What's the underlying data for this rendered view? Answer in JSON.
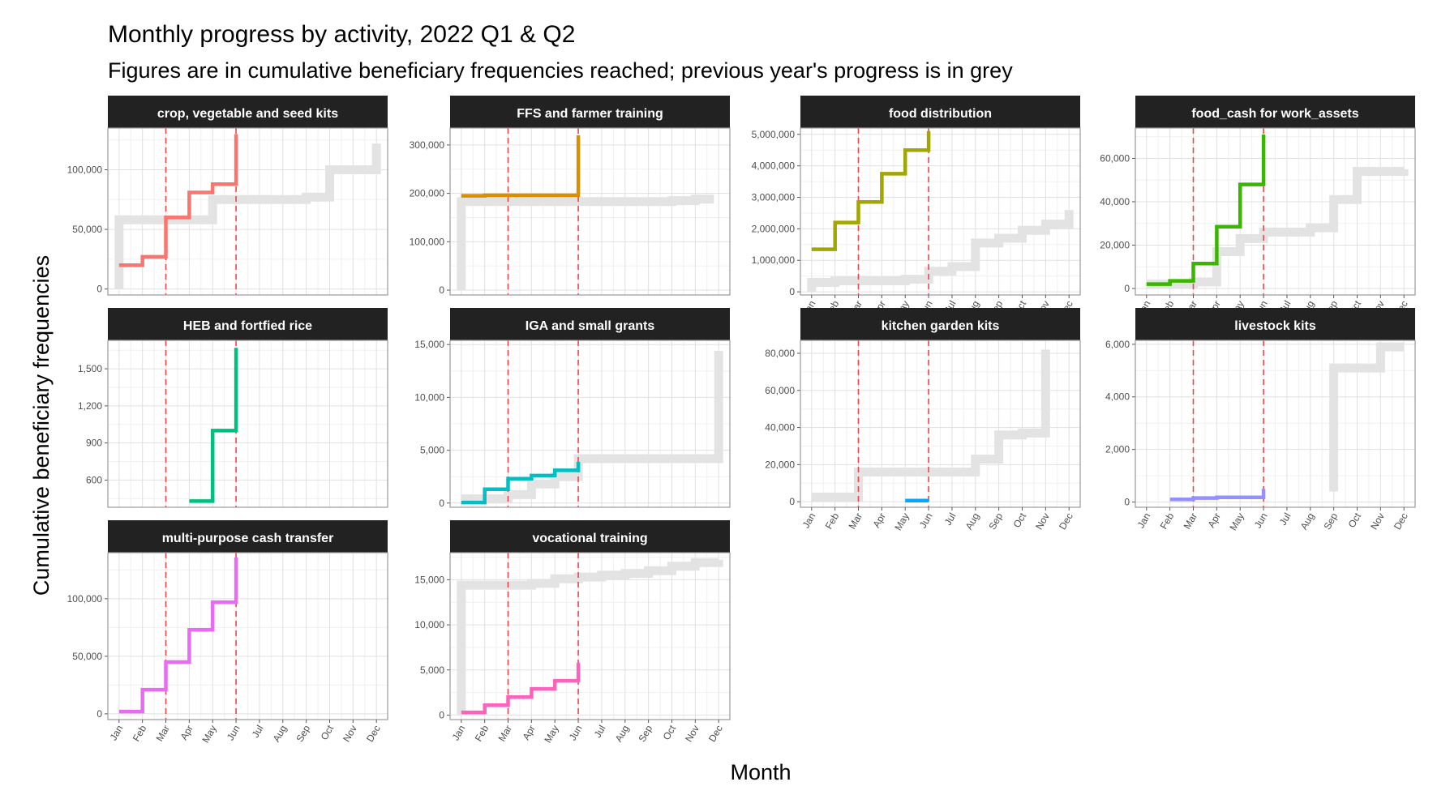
{
  "title": "Monthly progress by activity, 2022 Q1 & Q2",
  "subtitle": "Figures are in cumulative beneficiary frequencies reached; previous year's progress is in grey",
  "chart_data": {
    "type": "line",
    "xlabel": "Month",
    "ylabel": "Cumulative beneficiary frequencies",
    "months": [
      "Jan",
      "Feb",
      "Mar",
      "Apr",
      "May",
      "Jun",
      "Jul",
      "Aug",
      "Sep",
      "Oct",
      "Nov",
      "Dec"
    ],
    "reference_lines": [
      "Mar",
      "Jun"
    ],
    "previous_year_color": "#e3e3e3",
    "facets": [
      {
        "name": "crop, vegetable and seed kits",
        "color": "#F8766D",
        "ylim": [
          -5000,
          135000
        ],
        "yticks": [
          0,
          50000,
          100000
        ],
        "yticklabels": [
          "0",
          "50,000",
          "100,000"
        ],
        "current": {
          "x": [
            1,
            2,
            3,
            4,
            5,
            6,
            6
          ],
          "y": [
            20000,
            27000,
            60000,
            81000,
            88000,
            88000,
            130000
          ]
        },
        "previous": {
          "x": [
            1,
            1,
            5,
            9,
            10,
            12
          ],
          "y": [
            0,
            58000,
            75000,
            77000,
            100000,
            122000
          ]
        },
        "show_x": false
      },
      {
        "name": "FFS and farmer training",
        "color": "#D89000",
        "ylim": [
          -10000,
          335000
        ],
        "yticks": [
          0,
          100000,
          200000,
          300000
        ],
        "yticklabels": [
          "0",
          "100,000",
          "200,000",
          "300,000"
        ],
        "current": {
          "x": [
            1,
            2,
            3,
            4,
            5,
            6,
            6
          ],
          "y": [
            195000,
            196000,
            196000,
            196000,
            196000,
            196000,
            320000
          ]
        },
        "previous": {
          "x": [
            1,
            1,
            9,
            10,
            11,
            11.8
          ],
          "y": [
            0,
            183000,
            183000,
            185000,
            188000,
            188000
          ]
        },
        "show_x": false
      },
      {
        "name": "food distribution",
        "color": "#A3A500",
        "ylim": [
          -100000,
          5200000
        ],
        "yticks": [
          0,
          1000000,
          2000000,
          3000000,
          4000000,
          5000000
        ],
        "yticklabels": [
          "0",
          "1,000,000",
          "2,000,000",
          "3,000,000",
          "4,000,000",
          "5,000,000"
        ],
        "current": {
          "x": [
            1,
            2,
            3,
            4,
            5,
            6,
            6
          ],
          "y": [
            1350000,
            2200000,
            2850000,
            3750000,
            4500000,
            4500000,
            5100000
          ]
        },
        "previous": {
          "x": [
            1,
            1,
            2,
            5,
            6,
            7,
            8,
            9,
            10,
            11,
            12
          ],
          "y": [
            0,
            300000,
            350000,
            400000,
            650000,
            800000,
            1550000,
            1700000,
            1950000,
            2150000,
            2600000
          ]
        },
        "show_x": true
      },
      {
        "name": "food_cash for work_assets",
        "color": "#39B600",
        "ylim": [
          -3000,
          74000
        ],
        "yticks": [
          0,
          20000,
          40000,
          60000
        ],
        "yticklabels": [
          "0",
          "20,000",
          "40,000",
          "60,000"
        ],
        "current": {
          "x": [
            1,
            2,
            3,
            4,
            5,
            6,
            6
          ],
          "y": [
            2000,
            3500,
            11500,
            28500,
            48000,
            48000,
            71000
          ]
        },
        "previous": {
          "x": [
            1,
            3,
            4,
            5,
            6,
            8,
            9,
            10,
            12
          ],
          "y": [
            2000,
            3000,
            17000,
            23000,
            26000,
            28000,
            41000,
            54000,
            55000
          ]
        },
        "show_x": true
      },
      {
        "name": "HEB and fortfied rice",
        "color": "#00BF7D",
        "ylim": [
          380,
          1730
        ],
        "yticks": [
          600,
          900,
          1200,
          1500
        ],
        "yticklabels": [
          "600",
          "900",
          "1,200",
          "1,500"
        ],
        "current": {
          "x": [
            4,
            5,
            6,
            6
          ],
          "y": [
            430,
            1000,
            1000,
            1670
          ]
        },
        "previous": null,
        "show_x": false
      },
      {
        "name": "IGA and small grants",
        "color": "#00BFC4",
        "ylim": [
          -400,
          15400
        ],
        "yticks": [
          0,
          5000,
          10000,
          15000
        ],
        "yticklabels": [
          "0",
          "5,000",
          "10,000",
          "15,000"
        ],
        "current": {
          "x": [
            1,
            2,
            3,
            4,
            5,
            6,
            6
          ],
          "y": [
            50,
            1300,
            2300,
            2600,
            3100,
            3100,
            3900
          ]
        },
        "previous": {
          "x": [
            1,
            3,
            4,
            5,
            6,
            12
          ],
          "y": [
            400,
            800,
            1800,
            2500,
            4200,
            14400
          ]
        },
        "show_x": false
      },
      {
        "name": "kitchen garden kits",
        "color": "#00A9FF",
        "ylim": [
          -3000,
          87000
        ],
        "yticks": [
          0,
          20000,
          40000,
          60000,
          80000
        ],
        "yticklabels": [
          "0",
          "20,000",
          "40,000",
          "60,000",
          "80,000"
        ],
        "current": {
          "x": [
            5,
            6
          ],
          "y": [
            600,
            600
          ]
        },
        "previous": {
          "x": [
            1,
            3,
            7,
            8,
            9,
            10,
            11,
            11
          ],
          "y": [
            2500,
            16000,
            16000,
            23000,
            36000,
            37000,
            63000,
            82000
          ]
        },
        "show_x": true
      },
      {
        "name": "livestock kits",
        "color": "#9590FF",
        "ylim": [
          -200,
          6150
        ],
        "yticks": [
          0,
          2000,
          4000,
          6000
        ],
        "yticklabels": [
          "0",
          "2,000",
          "4,000",
          "6,000"
        ],
        "current": {
          "x": [
            2,
            3,
            4,
            5,
            6,
            6
          ],
          "y": [
            100,
            150,
            180,
            180,
            180,
            500
          ]
        },
        "previous": {
          "x": [
            9,
            9,
            11,
            12
          ],
          "y": [
            400,
            5100,
            5900,
            5900
          ]
        },
        "show_x": true
      },
      {
        "name": "multi-purpose cash transfer",
        "color": "#E76BF3",
        "ylim": [
          -5000,
          140000
        ],
        "yticks": [
          0,
          50000,
          100000
        ],
        "yticklabels": [
          "0",
          "50,000",
          "100,000"
        ],
        "current": {
          "x": [
            1,
            2,
            3,
            4,
            5,
            6,
            6
          ],
          "y": [
            2000,
            21000,
            45000,
            73000,
            97000,
            97000,
            136000
          ]
        },
        "previous": null,
        "show_x": true
      },
      {
        "name": "vocational training",
        "color": "#FF62BC",
        "ylim": [
          -500,
          18000
        ],
        "yticks": [
          0,
          5000,
          10000,
          15000
        ],
        "yticklabels": [
          "0",
          "5,000",
          "10,000",
          "15,000"
        ],
        "current": {
          "x": [
            1,
            2,
            3,
            4,
            5,
            6,
            6
          ],
          "y": [
            300,
            1100,
            2000,
            2900,
            3800,
            3800,
            5800
          ]
        },
        "previous": {
          "x": [
            1,
            1,
            4,
            5,
            6,
            7,
            8,
            9,
            10,
            11,
            12
          ],
          "y": [
            0,
            14400,
            14600,
            15100,
            15300,
            15500,
            15700,
            16000,
            16500,
            16900,
            17200
          ]
        },
        "show_x": true
      }
    ]
  }
}
